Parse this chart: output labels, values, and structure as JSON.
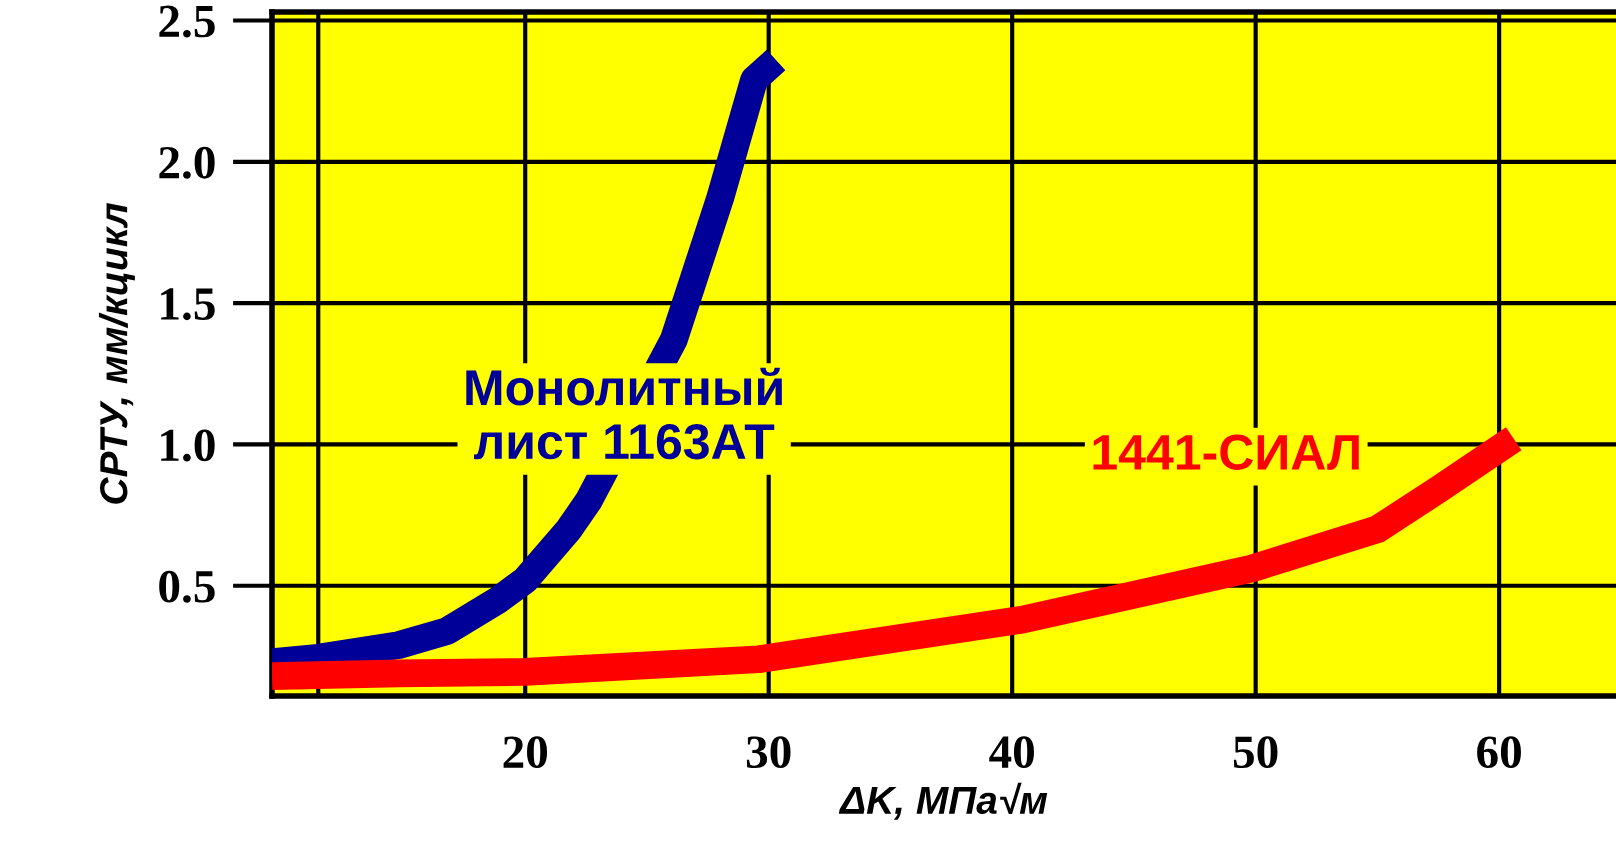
{
  "chart_data": {
    "type": "line",
    "xlabel": "ΔK, МПа√м",
    "ylabel": "СРТУ, мм/кцикл",
    "xlim": [
      9.6,
      64.8
    ],
    "xticks": [
      {
        "value": 11.5,
        "label": null
      },
      20,
      30,
      40,
      50,
      60
    ],
    "ylim": [
      0.11,
      2.53
    ],
    "yticks": [
      0.5,
      {
        "value": 1.0,
        "label": "1.0"
      },
      1.5,
      {
        "value": 2.0,
        "label": "2.0"
      },
      2.5
    ],
    "grid": true,
    "legend": false,
    "series": [
      {
        "name": "Монолитный\nлист 1163АТ",
        "color": "#000099",
        "x": [
          9.6,
          11.5,
          14.8,
          16.8,
          18.9,
          20,
          21.8,
          22.6,
          26.1,
          28.0,
          29.4,
          30.3
        ],
        "values": [
          0.23,
          0.245,
          0.29,
          0.34,
          0.45,
          0.52,
          0.7,
          0.8,
          1.37,
          1.87,
          2.29,
          2.36
        ]
      },
      {
        "name": "1441-СИАЛ",
        "color": "#ff0000",
        "x": [
          9.6,
          14.8,
          20,
          29.6,
          40.4,
          49.8,
          55,
          57.5,
          60.6
        ],
        "values": [
          0.18,
          0.19,
          0.195,
          0.24,
          0.38,
          0.56,
          0.7,
          0.84,
          1.02
        ]
      }
    ]
  }
}
